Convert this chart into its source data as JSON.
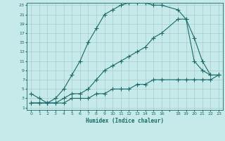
{
  "xlabel": "Humidex (Indice chaleur)",
  "bg_color": "#c6eaea",
  "grid_color": "#a8cccc",
  "line_color": "#1a6868",
  "xlim": [
    -0.5,
    23.5
  ],
  "ylim": [
    0.5,
    23.5
  ],
  "xticks": [
    0,
    1,
    2,
    3,
    4,
    5,
    6,
    7,
    8,
    9,
    10,
    11,
    12,
    13,
    14,
    15,
    16,
    17,
    18,
    19,
    20,
    21,
    22,
    23
  ],
  "yticks": [
    1,
    3,
    5,
    7,
    9,
    11,
    13,
    15,
    17,
    19,
    21,
    23
  ],
  "curve1_x": [
    0,
    1,
    2,
    3,
    4,
    5,
    6,
    7,
    8,
    9,
    10,
    11,
    12,
    13,
    14,
    15,
    16,
    18,
    19,
    20,
    21,
    22,
    23
  ],
  "curve1_y": [
    4,
    3,
    2,
    3,
    5,
    8,
    11,
    15,
    18,
    21,
    22,
    23,
    23.5,
    23.5,
    23.5,
    23,
    23,
    22,
    20,
    16,
    11,
    8,
    8
  ],
  "curve2_x": [
    0,
    1,
    2,
    3,
    4,
    5,
    6,
    7,
    8,
    9,
    10,
    11,
    12,
    13,
    14,
    15,
    16,
    18,
    19,
    20,
    21,
    22,
    23
  ],
  "curve2_y": [
    2,
    2,
    2,
    2,
    3,
    4,
    4,
    5,
    7,
    9,
    10,
    11,
    12,
    13,
    14,
    16,
    17,
    20,
    20,
    11,
    9,
    8,
    8
  ],
  "curve3_x": [
    0,
    1,
    2,
    3,
    4,
    5,
    6,
    7,
    8,
    9,
    10,
    11,
    12,
    13,
    14,
    15,
    16,
    18,
    19,
    20,
    21,
    22,
    23
  ],
  "curve3_y": [
    2,
    2,
    2,
    2,
    2,
    3,
    3,
    3,
    4,
    4,
    5,
    5,
    5,
    6,
    6,
    7,
    7,
    7,
    7,
    7,
    7,
    7,
    8
  ],
  "xtick_labels": [
    "0",
    "1",
    "2",
    "3",
    "4",
    "5",
    "6",
    "7",
    "8",
    "9",
    "10",
    "11",
    "12",
    "13",
    "14",
    "15",
    "16",
    " ",
    "18",
    "19",
    "20",
    "21",
    "22",
    "23"
  ]
}
